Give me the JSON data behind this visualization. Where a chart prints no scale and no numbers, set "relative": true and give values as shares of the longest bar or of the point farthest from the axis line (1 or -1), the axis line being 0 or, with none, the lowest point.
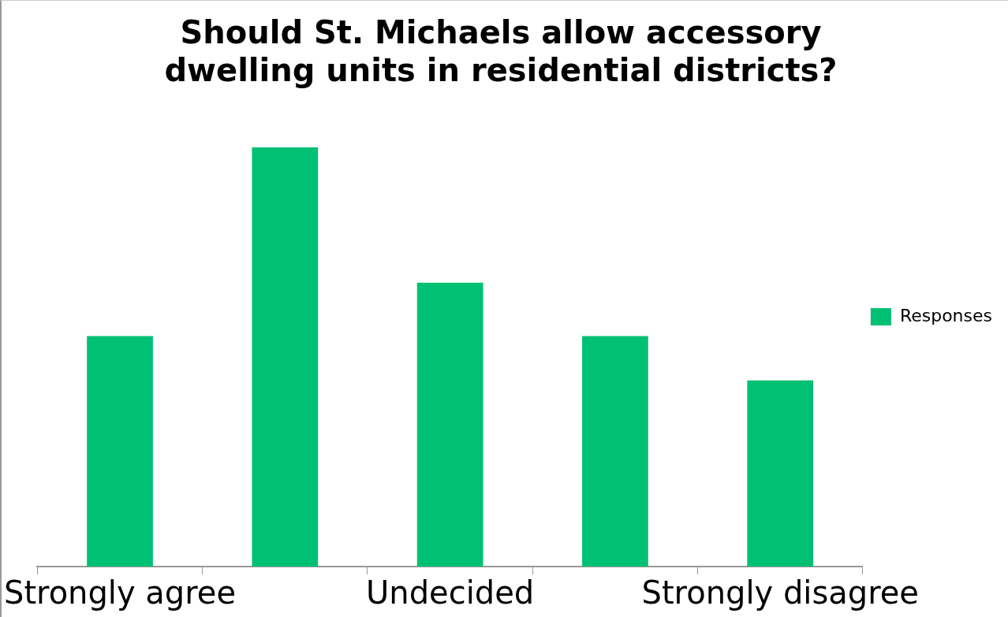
{
  "chart_data": {
    "type": "bar",
    "title": [
      "Should St. Michaels allow accessory",
      "dwelling units in residential districts?"
    ],
    "categories": [
      "Strongly agree",
      null,
      "Undecided",
      null,
      "Strongly disagree"
    ],
    "series": [
      {
        "name": "Responses",
        "color": "#00c073",
        "values": [
          0.55,
          1,
          0.677,
          0.55,
          0.444
        ]
      }
    ],
    "relative": true,
    "legend": "right",
    "grid": false
  }
}
